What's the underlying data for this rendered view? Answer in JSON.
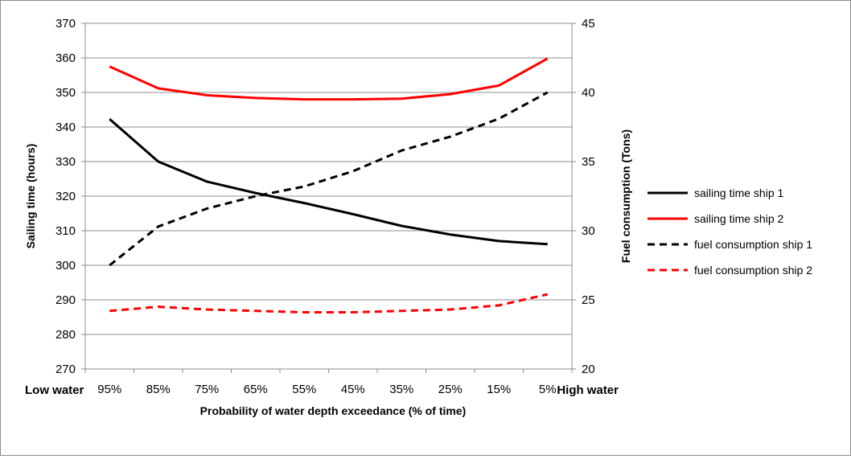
{
  "chart_data": {
    "type": "line",
    "categories": [
      "95%",
      "85%",
      "75%",
      "65%",
      "55%",
      "45%",
      "35%",
      "25%",
      "15%",
      "5%"
    ],
    "xlabel": "Probability of water depth exceedance (% of time)",
    "x_extremes": {
      "left": "Low water",
      "right": "High water"
    },
    "ylabel_left": "Sailing time (hours)",
    "ylabel_right": "Fuel consumption (Tons)",
    "ylim_left": [
      270,
      370
    ],
    "ylim_right": [
      20,
      45
    ],
    "yticks_left": [
      "270",
      "280",
      "290",
      "300",
      "310",
      "320",
      "330",
      "340",
      "350",
      "360",
      "370"
    ],
    "yticks_right": [
      "20",
      "25",
      "30",
      "35",
      "40",
      "45"
    ],
    "grid": true,
    "legend_position": "right",
    "series": [
      {
        "name": "sailing time ship 1",
        "axis": "left",
        "color": "#000000",
        "dash": "solid",
        "values": [
          342.3,
          330.0,
          324.2,
          320.9,
          318.0,
          314.8,
          311.4,
          308.9,
          307.0,
          306.1
        ]
      },
      {
        "name": "sailing time ship 2",
        "axis": "left",
        "color": "#ff0000",
        "dash": "solid",
        "values": [
          357.5,
          351.2,
          349.2,
          348.4,
          348.0,
          348.0,
          348.2,
          349.5,
          352.0,
          359.8
        ]
      },
      {
        "name": "fuel consumption ship 1",
        "axis": "right",
        "color": "#000000",
        "dash": "dashed",
        "values": [
          27.5,
          30.3,
          31.6,
          32.5,
          33.2,
          34.3,
          35.8,
          36.8,
          38.1,
          40.0
        ]
      },
      {
        "name": "fuel consumption ship 2",
        "axis": "right",
        "color": "#ff0000",
        "dash": "dashed",
        "values": [
          24.2,
          24.5,
          24.3,
          24.2,
          24.1,
          24.1,
          24.2,
          24.3,
          24.6,
          25.4
        ]
      }
    ]
  }
}
